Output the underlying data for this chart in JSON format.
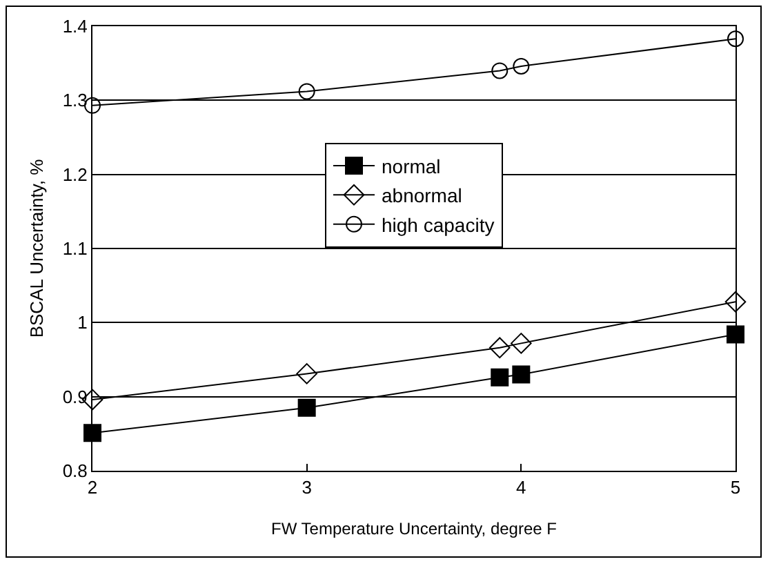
{
  "chart_data": {
    "type": "line",
    "xlabel": "FW Temperature Uncertainty, degree F",
    "ylabel": "BSCAL Uncertainty, %",
    "x": [
      2,
      3,
      3.9,
      4,
      5
    ],
    "series": [
      {
        "name": "normal",
        "color": "#000000",
        "marker": "square",
        "values": [
          0.851,
          0.885,
          0.926,
          0.93,
          0.984
        ]
      },
      {
        "name": "abnormal",
        "color": "#000000",
        "marker": "diamond",
        "values": [
          0.896,
          0.931,
          0.966,
          0.972,
          1.028
        ]
      },
      {
        "name": "high capacity",
        "color": "#000000",
        "marker": "circle",
        "values": [
          1.293,
          1.312,
          1.34,
          1.346,
          1.383
        ]
      }
    ],
    "xlim": [
      2,
      5
    ],
    "xticks": [
      2,
      3,
      4,
      5
    ],
    "ylim": [
      0.8,
      1.4
    ],
    "yticks": [
      0.8,
      0.9,
      1,
      1.1,
      1.2,
      1.3,
      1.4
    ],
    "grid": "y",
    "legend": "center",
    "line_style": "solid"
  }
}
